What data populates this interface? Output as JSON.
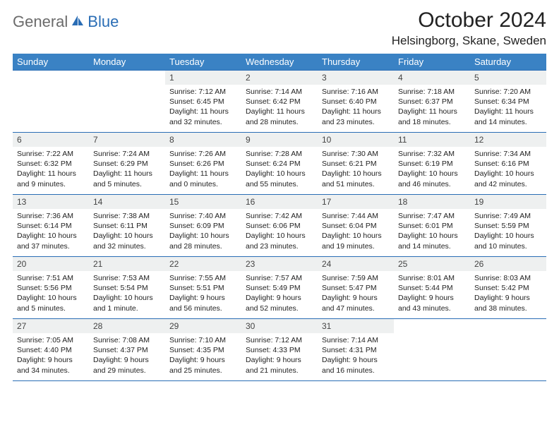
{
  "logo": {
    "general": "General",
    "blue": "Blue"
  },
  "header": {
    "title": "October 2024",
    "location": "Helsingborg, Skane, Sweden"
  },
  "colors": {
    "header_bg": "#3a82c4",
    "header_text": "#ffffff",
    "daynum_bg": "#eef0f0",
    "border": "#2a6db5",
    "logo_gray": "#6b6b6b",
    "logo_blue": "#2a6db5"
  },
  "day_names": [
    "Sunday",
    "Monday",
    "Tuesday",
    "Wednesday",
    "Thursday",
    "Friday",
    "Saturday"
  ],
  "weeks": [
    [
      {
        "n": "",
        "sr": "",
        "ss": "",
        "dl": ""
      },
      {
        "n": "",
        "sr": "",
        "ss": "",
        "dl": ""
      },
      {
        "n": "1",
        "sr": "Sunrise: 7:12 AM",
        "ss": "Sunset: 6:45 PM",
        "dl": "Daylight: 11 hours and 32 minutes."
      },
      {
        "n": "2",
        "sr": "Sunrise: 7:14 AM",
        "ss": "Sunset: 6:42 PM",
        "dl": "Daylight: 11 hours and 28 minutes."
      },
      {
        "n": "3",
        "sr": "Sunrise: 7:16 AM",
        "ss": "Sunset: 6:40 PM",
        "dl": "Daylight: 11 hours and 23 minutes."
      },
      {
        "n": "4",
        "sr": "Sunrise: 7:18 AM",
        "ss": "Sunset: 6:37 PM",
        "dl": "Daylight: 11 hours and 18 minutes."
      },
      {
        "n": "5",
        "sr": "Sunrise: 7:20 AM",
        "ss": "Sunset: 6:34 PM",
        "dl": "Daylight: 11 hours and 14 minutes."
      }
    ],
    [
      {
        "n": "6",
        "sr": "Sunrise: 7:22 AM",
        "ss": "Sunset: 6:32 PM",
        "dl": "Daylight: 11 hours and 9 minutes."
      },
      {
        "n": "7",
        "sr": "Sunrise: 7:24 AM",
        "ss": "Sunset: 6:29 PM",
        "dl": "Daylight: 11 hours and 5 minutes."
      },
      {
        "n": "8",
        "sr": "Sunrise: 7:26 AM",
        "ss": "Sunset: 6:26 PM",
        "dl": "Daylight: 11 hours and 0 minutes."
      },
      {
        "n": "9",
        "sr": "Sunrise: 7:28 AM",
        "ss": "Sunset: 6:24 PM",
        "dl": "Daylight: 10 hours and 55 minutes."
      },
      {
        "n": "10",
        "sr": "Sunrise: 7:30 AM",
        "ss": "Sunset: 6:21 PM",
        "dl": "Daylight: 10 hours and 51 minutes."
      },
      {
        "n": "11",
        "sr": "Sunrise: 7:32 AM",
        "ss": "Sunset: 6:19 PM",
        "dl": "Daylight: 10 hours and 46 minutes."
      },
      {
        "n": "12",
        "sr": "Sunrise: 7:34 AM",
        "ss": "Sunset: 6:16 PM",
        "dl": "Daylight: 10 hours and 42 minutes."
      }
    ],
    [
      {
        "n": "13",
        "sr": "Sunrise: 7:36 AM",
        "ss": "Sunset: 6:14 PM",
        "dl": "Daylight: 10 hours and 37 minutes."
      },
      {
        "n": "14",
        "sr": "Sunrise: 7:38 AM",
        "ss": "Sunset: 6:11 PM",
        "dl": "Daylight: 10 hours and 32 minutes."
      },
      {
        "n": "15",
        "sr": "Sunrise: 7:40 AM",
        "ss": "Sunset: 6:09 PM",
        "dl": "Daylight: 10 hours and 28 minutes."
      },
      {
        "n": "16",
        "sr": "Sunrise: 7:42 AM",
        "ss": "Sunset: 6:06 PM",
        "dl": "Daylight: 10 hours and 23 minutes."
      },
      {
        "n": "17",
        "sr": "Sunrise: 7:44 AM",
        "ss": "Sunset: 6:04 PM",
        "dl": "Daylight: 10 hours and 19 minutes."
      },
      {
        "n": "18",
        "sr": "Sunrise: 7:47 AM",
        "ss": "Sunset: 6:01 PM",
        "dl": "Daylight: 10 hours and 14 minutes."
      },
      {
        "n": "19",
        "sr": "Sunrise: 7:49 AM",
        "ss": "Sunset: 5:59 PM",
        "dl": "Daylight: 10 hours and 10 minutes."
      }
    ],
    [
      {
        "n": "20",
        "sr": "Sunrise: 7:51 AM",
        "ss": "Sunset: 5:56 PM",
        "dl": "Daylight: 10 hours and 5 minutes."
      },
      {
        "n": "21",
        "sr": "Sunrise: 7:53 AM",
        "ss": "Sunset: 5:54 PM",
        "dl": "Daylight: 10 hours and 1 minute."
      },
      {
        "n": "22",
        "sr": "Sunrise: 7:55 AM",
        "ss": "Sunset: 5:51 PM",
        "dl": "Daylight: 9 hours and 56 minutes."
      },
      {
        "n": "23",
        "sr": "Sunrise: 7:57 AM",
        "ss": "Sunset: 5:49 PM",
        "dl": "Daylight: 9 hours and 52 minutes."
      },
      {
        "n": "24",
        "sr": "Sunrise: 7:59 AM",
        "ss": "Sunset: 5:47 PM",
        "dl": "Daylight: 9 hours and 47 minutes."
      },
      {
        "n": "25",
        "sr": "Sunrise: 8:01 AM",
        "ss": "Sunset: 5:44 PM",
        "dl": "Daylight: 9 hours and 43 minutes."
      },
      {
        "n": "26",
        "sr": "Sunrise: 8:03 AM",
        "ss": "Sunset: 5:42 PM",
        "dl": "Daylight: 9 hours and 38 minutes."
      }
    ],
    [
      {
        "n": "27",
        "sr": "Sunrise: 7:05 AM",
        "ss": "Sunset: 4:40 PM",
        "dl": "Daylight: 9 hours and 34 minutes."
      },
      {
        "n": "28",
        "sr": "Sunrise: 7:08 AM",
        "ss": "Sunset: 4:37 PM",
        "dl": "Daylight: 9 hours and 29 minutes."
      },
      {
        "n": "29",
        "sr": "Sunrise: 7:10 AM",
        "ss": "Sunset: 4:35 PM",
        "dl": "Daylight: 9 hours and 25 minutes."
      },
      {
        "n": "30",
        "sr": "Sunrise: 7:12 AM",
        "ss": "Sunset: 4:33 PM",
        "dl": "Daylight: 9 hours and 21 minutes."
      },
      {
        "n": "31",
        "sr": "Sunrise: 7:14 AM",
        "ss": "Sunset: 4:31 PM",
        "dl": "Daylight: 9 hours and 16 minutes."
      },
      {
        "n": "",
        "sr": "",
        "ss": "",
        "dl": ""
      },
      {
        "n": "",
        "sr": "",
        "ss": "",
        "dl": ""
      }
    ]
  ]
}
